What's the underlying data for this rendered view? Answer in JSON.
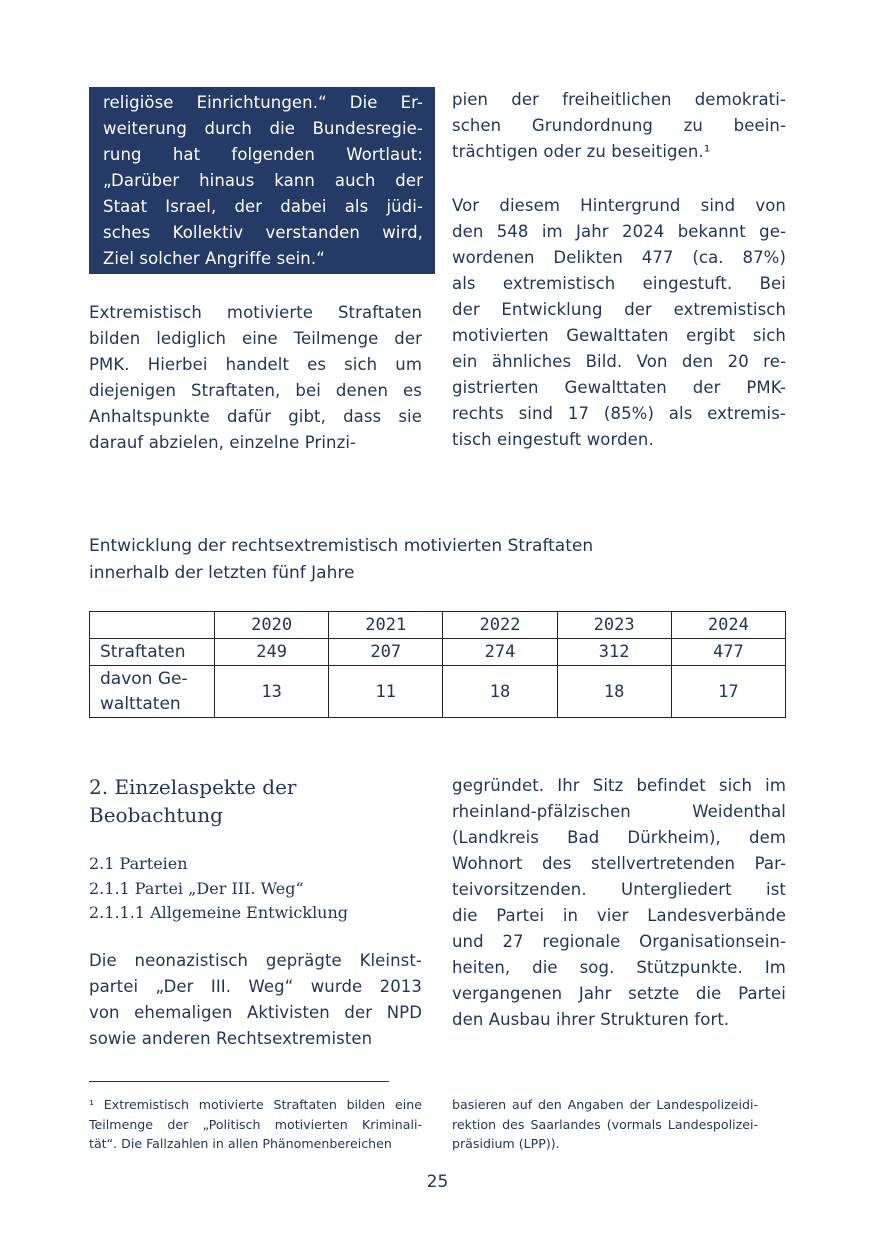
{
  "quote_box": {
    "lines": [
      "religiöse Einrichtungen.“ Die Er-",
      "weiterung durch die Bundesregie-",
      "rung hat folgenden Wortlaut:",
      "„Darüber hinaus kann auch der",
      "Staat Israel, der dabei als jüdi-",
      "sches Kollektiv verstanden wird,",
      "Ziel solcher Angriffe sein.“"
    ]
  },
  "left_para1": {
    "lines": [
      "Extremistisch motivierte Straftaten",
      "bilden lediglich eine Teilmenge der",
      "PMK. Hierbei handelt es sich um",
      "diejenigen Straftaten, bei denen es",
      "Anhaltspunkte dafür gibt, dass sie",
      "darauf abzielen, einzelne Prinzi-"
    ]
  },
  "right_para1": {
    "lines": [
      "pien der freiheitlichen demokrati-",
      "schen Grundordnung zu beein-",
      "trächtigen oder zu beseitigen.¹"
    ]
  },
  "right_para2": {
    "lines": [
      "Vor diesem Hintergrund sind von",
      "den 548 im Jahr 2024 bekannt ge-",
      "wordenen Delikten 477 (ca. 87%)",
      "als extremistisch eingestuft. Bei",
      "der Entwicklung der extremistisch",
      "motivierten Gewalttaten ergibt sich",
      "ein ähnliches Bild. Von den 20 re-",
      "gistrierten Gewalttaten der PMK-",
      "rechts sind 17 (85%) als extremis-",
      "tisch eingestuft worden."
    ]
  },
  "table_caption": {
    "lines": [
      "Entwicklung der rechtsextremistisch motivierten Straftaten",
      "innerhalb der letzten fünf Jahre"
    ]
  },
  "table": {
    "years": [
      "2020",
      "2021",
      "2022",
      "2023",
      "2024"
    ],
    "rows": [
      {
        "label": "Straftaten",
        "values": [
          "249",
          "207",
          "274",
          "312",
          "477"
        ]
      },
      {
        "label": "davon Ge-\nwalttaten",
        "values": [
          "13",
          "11",
          "18",
          "18",
          "17"
        ]
      }
    ]
  },
  "section": {
    "heading": "2. Einzelaspekte der Beobachtung",
    "sub1": "2.1 Parteien",
    "sub2": "2.1.1 Partei „Der III. Weg“",
    "sub3": "2.1.1.1 Allgemeine Entwicklung"
  },
  "left_para2": {
    "lines": [
      "Die neonazistisch geprägte Kleinst-",
      "partei „Der III. Weg“ wurde 2013",
      "von ehemaligen Aktivisten der NPD",
      "sowie anderen Rechtsextremisten"
    ]
  },
  "right_para3": {
    "lines": [
      "gegründet. Ihr Sitz befindet sich im",
      "rheinland-pfälzischen Weidenthal",
      "(Landkreis Bad Dürkheim), dem",
      "Wohnort des stellvertretenden Par-",
      "teivorsitzenden. Untergliedert ist",
      "die Partei in vier Landesverbände",
      "und 27 regionale Organisationsein-",
      "heiten, die sog. Stützpunkte. Im",
      "vergangenen Jahr setzte die Partei",
      "den Ausbau ihrer Strukturen fort."
    ]
  },
  "footnote_left": {
    "lines": [
      "¹ Extremistisch motivierte Straftaten bilden eine",
      "Teilmenge der „Politisch motivierten Kriminali-",
      "tät“. Die Fallzahlen in allen Phänomenbereichen"
    ]
  },
  "footnote_right": {
    "lines": [
      "basieren auf den Angaben der Landespolizeidi-",
      "rektion des Saarlandes (vormals Landespolizei-",
      "präsidium (LPP))."
    ]
  },
  "page_number": "25",
  "colors": {
    "text": "#1e3558",
    "box": "#233b66"
  }
}
